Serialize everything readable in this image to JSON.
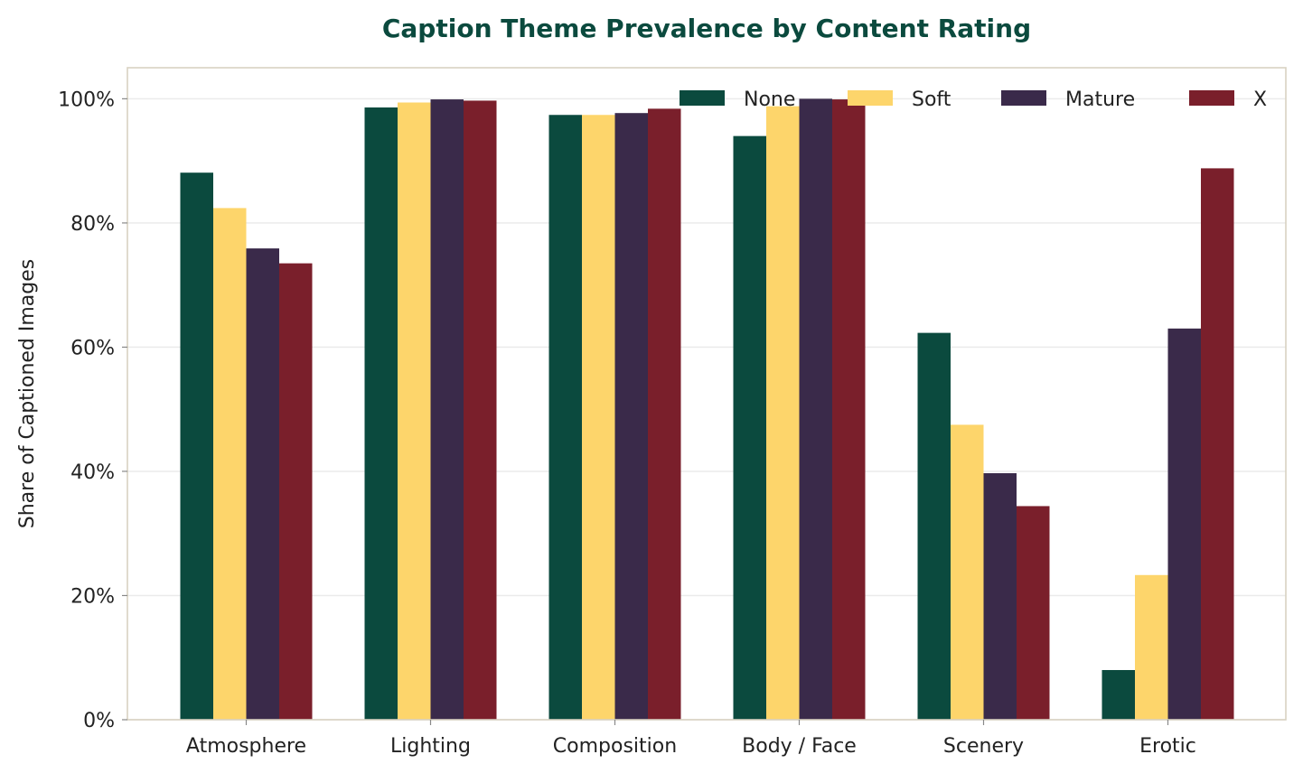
{
  "chart_data": {
    "type": "bar",
    "title": "Caption Theme Prevalence by Content Rating",
    "xlabel": "",
    "ylabel": "Share of Captioned Images",
    "categories": [
      "Atmosphere",
      "Lighting",
      "Composition",
      "Body / Face",
      "Scenery",
      "Erotic"
    ],
    "series": [
      {
        "name": "None",
        "color": "#0b4a3e",
        "values": [
          88.1,
          98.6,
          97.4,
          94.0,
          62.3,
          8.0
        ]
      },
      {
        "name": "Soft",
        "color": "#fdd56b",
        "values": [
          82.4,
          99.4,
          97.4,
          98.8,
          47.5,
          23.3
        ]
      },
      {
        "name": "Mature",
        "color": "#3a2a4a",
        "values": [
          75.9,
          99.9,
          97.7,
          100.0,
          39.7,
          63.0
        ]
      },
      {
        "name": "X",
        "color": "#7a1f2b",
        "values": [
          73.5,
          99.7,
          98.4,
          99.9,
          34.4,
          88.8
        ]
      }
    ],
    "ylim": [
      0,
      105
    ],
    "yticks": [
      0,
      20,
      40,
      60,
      80,
      100
    ],
    "ytick_labels": [
      "0%",
      "20%",
      "40%",
      "60%",
      "80%",
      "100%"
    ],
    "grid": "horizontal",
    "legend_position": "top-right"
  }
}
